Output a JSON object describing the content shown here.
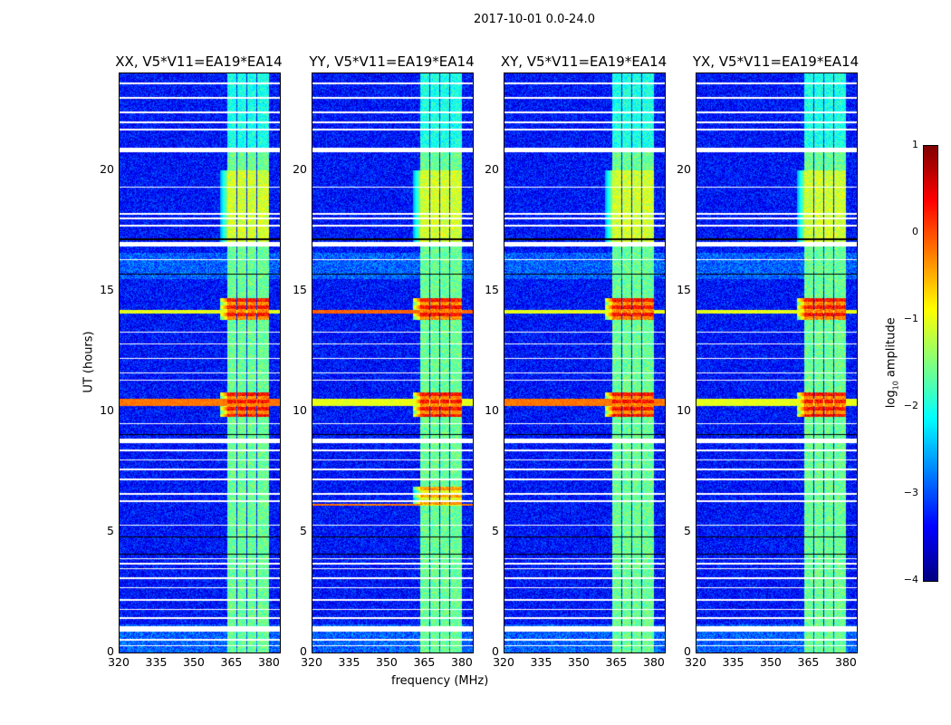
{
  "suptitle": "2017-10-01 0.0-24.0",
  "chart_data": {
    "type": "heatmap",
    "panels": [
      {
        "title": "XX, V5*V11=EA19*EA14",
        "pol": "XX"
      },
      {
        "title": "YY, V5*V11=EA19*EA14",
        "pol": "YY"
      },
      {
        "title": "XY, V5*V11=EA19*EA14",
        "pol": "XY"
      },
      {
        "title": "YX, V5*V11=EA19*EA14",
        "pol": "YX"
      }
    ],
    "xlabel": "frequency (MHz)",
    "ylabel": "UT (hours)",
    "xlim": [
      320,
      384
    ],
    "ylim": [
      0,
      24
    ],
    "xticks": [
      "320",
      "335",
      "350",
      "365",
      "380"
    ],
    "xtick_values": [
      320,
      335,
      350,
      365,
      380
    ],
    "yticks": [
      "0",
      "5",
      "10",
      "15",
      "20"
    ],
    "ytick_values": [
      0,
      5,
      10,
      15,
      20
    ],
    "colorbar": {
      "label": "log10 amplitude",
      "label_main": "log",
      "label_sub": "10",
      "label_rest": " amplitude",
      "colormap": "jet",
      "range": [
        -4,
        1
      ],
      "ticks": [
        "1",
        "0",
        "−1",
        "−2",
        "−3",
        "−4"
      ],
      "tick_values": [
        1,
        0,
        -1,
        -2,
        -3,
        -4
      ]
    },
    "background_level": -3.3,
    "subbands_mhz": [
      [
        363,
        366.3
      ],
      [
        366.8,
        370.3
      ],
      [
        370.8,
        374.3
      ],
      [
        374.8,
        379.5
      ]
    ],
    "flagged_rows_hours": [
      0.3,
      0.55,
      1.0,
      1.45,
      1.8,
      2.2,
      2.7,
      3.1,
      3.5,
      3.7,
      3.9,
      5.3,
      6.3,
      6.6,
      7.2,
      7.6,
      8.0,
      8.4,
      8.8,
      9.5,
      11.3,
      11.6,
      12.2,
      12.8,
      13.3,
      16.3,
      16.9,
      17.7,
      18.0,
      18.2,
      19.3,
      20.8,
      21.7,
      22.0,
      22.4,
      23.0,
      23.6
    ],
    "thick_flagged_hours": [
      1.0,
      8.8,
      16.95,
      20.85
    ],
    "dark_rows_hours": [
      4.1,
      4.8,
      9.05,
      15.7,
      17.15
    ],
    "rfi_events": [
      {
        "hours": [
          9.8,
          10.8
        ],
        "band_level": 0.3
      },
      {
        "hours": [
          13.8,
          14.7
        ],
        "band_level": 0.3
      },
      {
        "hours": [
          6.1,
          6.9
        ],
        "band_level": -0.4
      }
    ]
  }
}
